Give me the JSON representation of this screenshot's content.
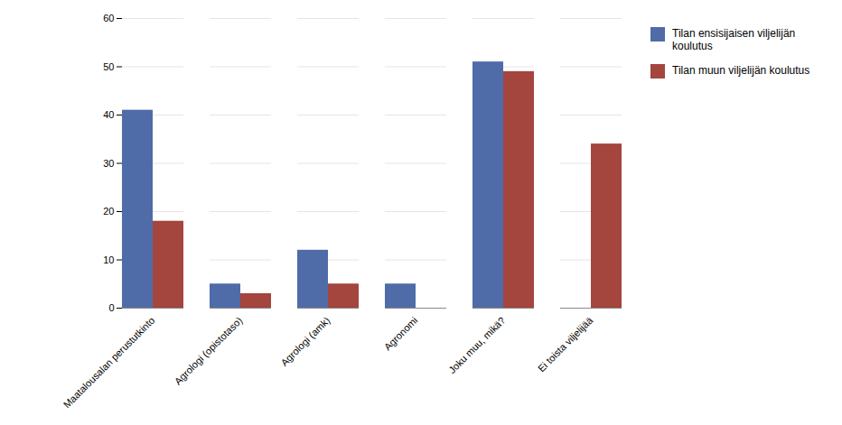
{
  "chart_data": {
    "type": "bar",
    "categories": [
      "Maatalousalan perustutkinto",
      "Agrologi (opistotaso)",
      "Agrologi (amk)",
      "Agronomi",
      "Joku muu, mikä?",
      "Ei toista viljelijää"
    ],
    "series": [
      {
        "name": "Tilan ensisijaisen viljelijän\nkoulutus",
        "color": "#4F6CA8",
        "values": [
          41,
          5,
          12,
          5,
          51,
          0
        ]
      },
      {
        "name": "Tilan muun viljelijän koulutus",
        "color": "#A4453E",
        "values": [
          18,
          3,
          5,
          0,
          49,
          34
        ]
      }
    ],
    "ylim": [
      0,
      60
    ],
    "yticks": [
      0,
      10,
      20,
      30,
      40,
      50,
      60
    ],
    "grid": true,
    "legend": "right"
  }
}
